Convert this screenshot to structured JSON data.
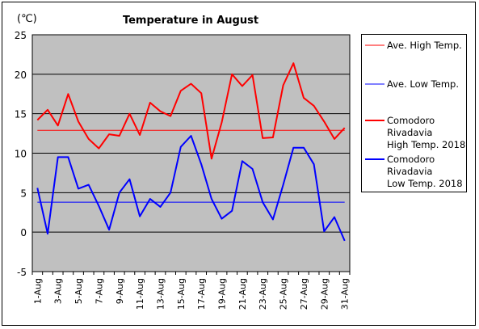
{
  "chart_data": {
    "type": "line",
    "title": "Temperature in August",
    "unit_label": "(℃)",
    "y_ticks": [
      "25",
      "20",
      "15",
      "10",
      "5",
      "0",
      "-5"
    ],
    "ylim": [
      -5,
      25
    ],
    "x_tick_labels": [
      "1-Aug",
      "3-Aug",
      "5-Aug",
      "7-Aug",
      "9-Aug",
      "11-Aug",
      "13-Aug",
      "15-Aug",
      "17-Aug",
      "19-Aug",
      "21-Aug",
      "23-Aug",
      "25-Aug",
      "27-Aug",
      "29-Aug",
      "31-Aug"
    ],
    "x": [
      1,
      2,
      3,
      4,
      5,
      6,
      7,
      8,
      9,
      10,
      11,
      12,
      13,
      14,
      15,
      16,
      17,
      18,
      19,
      20,
      21,
      22,
      23,
      24,
      25,
      26,
      27,
      28,
      29,
      30,
      31
    ],
    "plot_background": "#c0c0c0",
    "grid": "horizontal",
    "legend_position": "right",
    "series": [
      {
        "name": "Ave. High Temp.",
        "color": "#ff0000",
        "width": 1,
        "values": [
          12.9,
          12.9,
          12.9,
          12.9,
          12.9,
          12.9,
          12.9,
          12.9,
          12.9,
          12.9,
          12.9,
          12.9,
          12.9,
          12.9,
          12.9,
          12.9,
          12.9,
          12.9,
          12.9,
          12.9,
          12.9,
          12.9,
          12.9,
          12.9,
          12.9,
          12.9,
          12.9,
          12.9,
          12.9,
          12.9,
          12.9
        ]
      },
      {
        "name": "Ave. Low Temp.",
        "color": "#0000ff",
        "width": 1,
        "values": [
          3.8,
          3.8,
          3.8,
          3.8,
          3.8,
          3.8,
          3.8,
          3.8,
          3.8,
          3.8,
          3.8,
          3.8,
          3.8,
          3.8,
          3.8,
          3.8,
          3.8,
          3.8,
          3.8,
          3.8,
          3.8,
          3.8,
          3.8,
          3.8,
          3.8,
          3.8,
          3.8,
          3.8,
          3.8,
          3.8,
          3.8
        ]
      },
      {
        "name": "Comodoro Rivadavia High Temp. 2018",
        "legend_lines": [
          "Comodoro",
          "Rivadavia",
          "High Temp. 2018"
        ],
        "color": "#ff0000",
        "width": 2,
        "values": [
          14.2,
          15.5,
          13.5,
          17.5,
          14.0,
          11.8,
          10.6,
          12.4,
          12.2,
          15.0,
          12.3,
          16.4,
          15.3,
          14.7,
          17.9,
          18.8,
          17.6,
          9.3,
          13.9,
          20.0,
          18.5,
          19.9,
          11.9,
          12.0,
          18.6,
          21.4,
          17.0,
          16.0,
          14.0,
          11.8,
          13.2
        ]
      },
      {
        "name": "Comodoro Rivadavia Low Temp. 2018",
        "legend_lines": [
          "Comodoro",
          "Rivadavia",
          "Low Temp. 2018"
        ],
        "color": "#0000ff",
        "width": 2,
        "values": [
          5.6,
          -0.2,
          9.5,
          9.5,
          5.5,
          6.0,
          3.3,
          0.3,
          5.0,
          6.7,
          2.0,
          4.2,
          3.2,
          5.0,
          10.8,
          12.2,
          8.6,
          4.2,
          1.7,
          2.7,
          9.0,
          8.0,
          3.8,
          1.6,
          6.0,
          10.7,
          10.7,
          8.6,
          0.1,
          1.9,
          -1.1
        ]
      }
    ]
  }
}
